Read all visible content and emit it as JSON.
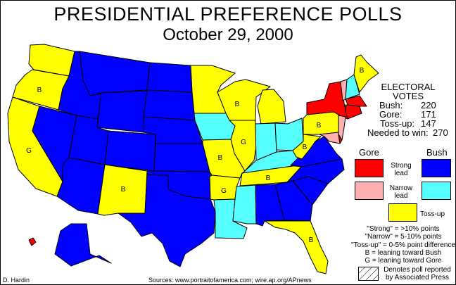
{
  "title": "PRESIDENTIAL PREFERENCE POLLS",
  "date": "October 29, 2000",
  "colors": {
    "gore_strong": "#ff0000",
    "gore_narrow": "#ffb0b0",
    "bush_strong": "#0000ff",
    "bush_narrow": "#55ffff",
    "tossup": "#ffff00"
  },
  "electoral": {
    "heading1": "ELECTORAL",
    "heading2": "VOTES",
    "rows": [
      {
        "label": "Bush:",
        "value": "220"
      },
      {
        "label": "Gore:",
        "value": "171"
      },
      {
        "label": "Toss-up:",
        "value": "147"
      },
      {
        "label": "Needed to win:",
        "value": "270"
      }
    ]
  },
  "legend": {
    "gore": "Gore",
    "bush": "Bush",
    "strong_1": "Strong",
    "strong_2": "lead",
    "narrow_1": "Narrow",
    "narrow_2": "lead",
    "tossup": "Toss-up"
  },
  "notes": [
    "\"Strong\" = >10% points",
    "\"Narrow\" = 5-10% points",
    "\"Toss-up\" = 0-5% point difference",
    "B = leaning toward Bush",
    "G = leaning toward Gore"
  ],
  "ap_note": [
    "Denotes poll reported",
    "by Associated Press"
  ],
  "credit": "D. Hardin",
  "sources": "Sources:  www.portraitofamerica.com; wire.ap.org/APnews",
  "states": {
    "WA": {
      "status": "tossup"
    },
    "OR": {
      "status": "tossup",
      "lean": "B"
    },
    "CA": {
      "status": "tossup",
      "lean": "G"
    },
    "NV": {
      "status": "bush_strong"
    },
    "ID": {
      "status": "bush_strong"
    },
    "MT": {
      "status": "bush_strong"
    },
    "WY": {
      "status": "bush_strong"
    },
    "UT": {
      "status": "bush_strong"
    },
    "CO": {
      "status": "bush_strong"
    },
    "AZ": {
      "status": "bush_strong"
    },
    "NM": {
      "status": "tossup",
      "lean": "B"
    },
    "ND": {
      "status": "bush_strong"
    },
    "SD": {
      "status": "bush_strong"
    },
    "NE": {
      "status": "bush_strong"
    },
    "KS": {
      "status": "bush_strong"
    },
    "OK": {
      "status": "bush_strong"
    },
    "TX": {
      "status": "bush_strong"
    },
    "AK": {
      "status": "bush_strong"
    },
    "HI": {
      "status": "gore_strong"
    },
    "MN": {
      "status": "tossup"
    },
    "IA": {
      "status": "bush_narrow"
    },
    "WI": {
      "status": "tossup",
      "lean": "B"
    },
    "MI": {
      "status": "tossup"
    },
    "IL": {
      "status": "tossup",
      "lean": "G"
    },
    "IN": {
      "status": "bush_narrow"
    },
    "OH": {
      "status": "bush_narrow"
    },
    "KY": {
      "status": "bush_narrow"
    },
    "TN": {
      "status": "tossup",
      "lean": "B"
    },
    "MO": {
      "status": "tossup",
      "lean": "B"
    },
    "AR": {
      "status": "tossup",
      "lean": "G"
    },
    "LA": {
      "status": "bush_narrow"
    },
    "MS": {
      "status": "bush_narrow"
    },
    "AL": {
      "status": "bush_strong"
    },
    "GA": {
      "status": "bush_strong"
    },
    "FL": {
      "status": "tossup",
      "lean": "B"
    },
    "SC": {
      "status": "bush_strong"
    },
    "NC": {
      "status": "bush_strong"
    },
    "VA": {
      "status": "bush_strong"
    },
    "WV": {
      "status": "tossup",
      "lean": "B"
    },
    "PA": {
      "status": "tossup",
      "lean": "B"
    },
    "NY": {
      "status": "gore_strong"
    },
    "NJ": {
      "status": "gore_narrow"
    },
    "MD": {
      "status": "gore_narrow"
    },
    "DE": {
      "status": "gore_strong"
    },
    "VT": {
      "status": "gore_narrow"
    },
    "NH": {
      "status": "bush_narrow"
    },
    "ME": {
      "status": "tossup",
      "lean": "B"
    },
    "MA": {
      "status": "gore_strong"
    },
    "CT": {
      "status": "gore_strong"
    }
  }
}
